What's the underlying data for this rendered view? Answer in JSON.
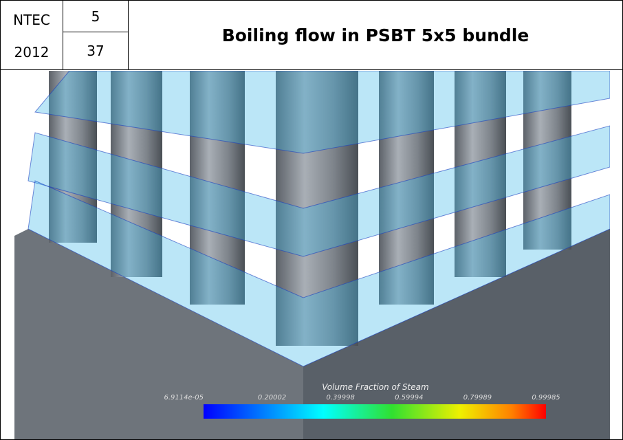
{
  "header": {
    "event": "NTEC",
    "year": "2012",
    "session": "5",
    "slide": "37",
    "title": "Boiling flow in PSBT 5x5 bundle"
  },
  "figure": {
    "colorbar_title": "Volume Fraction of Steam",
    "colorbar_labels": [
      "6.9114e-05",
      "0.20002",
      "0.39998",
      "0.59994",
      "0.79989",
      "0.99985"
    ]
  }
}
